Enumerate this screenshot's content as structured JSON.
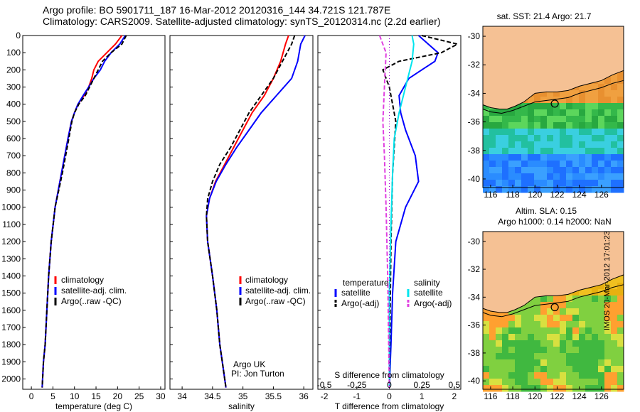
{
  "title_line1": "Argo profile: BO 5901711_187 16-Mar-2012 20120316_144 34.721S 121.787E",
  "title_line2": "Climatology: CARS2009. Satellite-adjusted climatology: synTS_20120314.nc (2.2d earlier)",
  "colors": {
    "climatology": "#ff0000",
    "satellite": "#0000ff",
    "argo": "#000000",
    "sat_diff_S": "#00e5ee",
    "argo_diff_S": "#e040e0",
    "land": "#f5c194",
    "grid": "#000000"
  },
  "chart_data": [
    {
      "type": "line",
      "xlabel": "temperature (deg C)",
      "ylabel": "",
      "xlim": [
        -2,
        31
      ],
      "ylim": [
        2060,
        0
      ],
      "xticks": [
        0,
        5,
        10,
        15,
        20,
        25,
        30
      ],
      "yticks": [
        0,
        100,
        200,
        300,
        400,
        500,
        600,
        700,
        800,
        900,
        1000,
        1100,
        1200,
        1300,
        1400,
        1500,
        1600,
        1700,
        1800,
        1900,
        2000
      ],
      "legend": [
        "climatology",
        "satellite-adj. clim.",
        "Argo(..raw -QC)"
      ],
      "series": [
        {
          "name": "climatology",
          "color": "#ff0000",
          "dash": "",
          "x": [
            21.0,
            19.5,
            17.5,
            15.5,
            14.5,
            14.0,
            13.3,
            12.2,
            10.8,
            10.0,
            9.3,
            8.5,
            7.0,
            5.5,
            4.6,
            4.0,
            3.6,
            3.2,
            2.8,
            2.6,
            2.5
          ],
          "y": [
            0,
            50,
            100,
            150,
            200,
            250,
            300,
            350,
            400,
            450,
            500,
            600,
            800,
            1000,
            1200,
            1400,
            1600,
            1800,
            1900,
            2000,
            2050
          ]
        },
        {
          "name": "satellite-adj. clim.",
          "color": "#0000ff",
          "dash": "",
          "x": [
            21.8,
            20.5,
            18.5,
            17.0,
            16.0,
            14.5,
            13.3,
            12.0,
            10.8,
            10.0,
            9.3,
            8.5,
            7.0,
            5.5,
            4.6,
            4.0,
            3.6,
            3.2,
            2.8,
            2.6,
            2.5
          ],
          "y": [
            0,
            50,
            100,
            150,
            200,
            250,
            300,
            350,
            400,
            450,
            500,
            600,
            800,
            1000,
            1200,
            1400,
            1600,
            1800,
            1900,
            2000,
            2050
          ]
        },
        {
          "name": "Argo(..raw -QC)",
          "color": "#000000",
          "dash": "6,3",
          "x": [
            22.0,
            21.0,
            18.5,
            16.5,
            15.5,
            14.5,
            13.5,
            12.5,
            11.0,
            10.0,
            9.4,
            8.7,
            7.2,
            5.5,
            4.6,
            4.0,
            3.6,
            3.2,
            2.8,
            2.6,
            2.5
          ],
          "y": [
            0,
            50,
            100,
            150,
            200,
            250,
            300,
            350,
            400,
            450,
            500,
            600,
            800,
            1000,
            1200,
            1400,
            1600,
            1800,
            1900,
            2000,
            2050
          ]
        }
      ]
    },
    {
      "type": "line",
      "xlabel": "salinity",
      "ylabel": "",
      "xlim": [
        33.8,
        36.15
      ],
      "ylim": [
        2060,
        0
      ],
      "xticks": [
        34,
        34.5,
        35,
        35.5,
        36
      ],
      "legend": [
        "climatology",
        "satellite-adj. clim.",
        "Argo(..raw -QC)"
      ],
      "annotation": [
        "Argo UK",
        "PI: Jon Turton"
      ],
      "series": [
        {
          "name": "climatology",
          "color": "#ff0000",
          "dash": "",
          "x": [
            35.75,
            35.7,
            35.62,
            35.5,
            35.35,
            35.15,
            35.0,
            34.85,
            34.7,
            34.55,
            34.45,
            34.4,
            34.42,
            34.5,
            34.57,
            34.62,
            34.66,
            34.7,
            34.72
          ],
          "y": [
            0,
            50,
            150,
            250,
            350,
            450,
            550,
            650,
            750,
            850,
            950,
            1050,
            1200,
            1400,
            1600,
            1800,
            1900,
            2000,
            2050
          ]
        },
        {
          "name": "satellite-adj. clim.",
          "color": "#0000ff",
          "dash": "",
          "x": [
            36.02,
            35.95,
            35.9,
            35.8,
            35.55,
            35.3,
            35.1,
            34.9,
            34.72,
            34.56,
            34.45,
            34.4,
            34.42,
            34.5,
            34.57,
            34.62,
            34.66,
            34.7,
            34.72
          ],
          "y": [
            0,
            50,
            150,
            250,
            350,
            450,
            550,
            650,
            750,
            850,
            950,
            1050,
            1200,
            1400,
            1600,
            1800,
            1900,
            2000,
            2050
          ]
        },
        {
          "name": "Argo(..raw -QC)",
          "color": "#000000",
          "dash": "6,3",
          "x": [
            35.85,
            35.8,
            35.65,
            35.5,
            35.3,
            35.1,
            34.95,
            34.8,
            34.62,
            34.5,
            34.42,
            34.4,
            34.42,
            34.5,
            34.57,
            34.62,
            34.66,
            34.7,
            34.72
          ],
          "y": [
            0,
            50,
            150,
            250,
            350,
            450,
            550,
            650,
            750,
            850,
            950,
            1050,
            1200,
            1400,
            1600,
            1800,
            1900,
            2000,
            2050
          ]
        }
      ]
    },
    {
      "type": "line",
      "xlabel": "T difference from climatology",
      "xlabel_top": "S difference from climatology",
      "ylabel": "",
      "xlim": [
        -2.2,
        2.2
      ],
      "ylim": [
        2060,
        0
      ],
      "xticks": [
        -2,
        -1,
        0,
        1,
        2
      ],
      "xticks_S_labels": [
        "-0.5",
        "-0.25",
        "0",
        "0.25",
        "0.5"
      ],
      "xticks_S_pos": [
        -2,
        -1,
        0,
        1,
        2
      ],
      "legend_T": [
        "temperature",
        "satellite",
        "Argo(-adj)"
      ],
      "legend_S": [
        "salinity",
        "satellite",
        "Argo(-adj)"
      ],
      "series": [
        {
          "name": "T satellite",
          "color": "#0000ff",
          "dash": "",
          "x": [
            0.9,
            1.2,
            1.5,
            1.4,
            1.0,
            0.6,
            0.3,
            0.35,
            0.5,
            0.8,
            0.9,
            0.5,
            0.2,
            0.1,
            0.05,
            0.0
          ],
          "y": [
            0,
            50,
            100,
            150,
            200,
            250,
            350,
            450,
            550,
            700,
            850,
            1000,
            1200,
            1500,
            1800,
            2050
          ]
        },
        {
          "name": "T Argo(-adj)",
          "color": "#000000",
          "dash": "6,3",
          "x": [
            1.0,
            2.1,
            1.6,
            0.3,
            -0.2,
            0.0,
            0.2,
            0.1,
            0.05,
            0.0
          ],
          "y": [
            0,
            50,
            100,
            150,
            200,
            300,
            500,
            800,
            1200,
            2050
          ]
        },
        {
          "name": "S satellite",
          "color": "#00e5ee",
          "dash": "",
          "x": [
            0.7,
            0.75,
            0.7,
            0.5,
            0.3,
            0.15,
            0.1,
            0.05,
            0.0,
            0.0
          ],
          "y": [
            0,
            50,
            150,
            300,
            450,
            600,
            800,
            1100,
            1500,
            2050
          ]
        },
        {
          "name": "S Argo(-adj)",
          "color": "#e040e0",
          "dash": "6,3",
          "x": [
            -0.3,
            -0.1,
            -0.15,
            -0.2,
            -0.15,
            -0.1,
            -0.05,
            0.0
          ],
          "y": [
            0,
            100,
            300,
            500,
            700,
            1000,
            1400,
            2050
          ]
        }
      ]
    },
    {
      "type": "heatmap",
      "title": "sat. SST: 21.4  Argo: 21.7",
      "xticks": [
        116,
        118,
        120,
        122,
        124,
        126
      ],
      "yticks": [
        -30,
        -32,
        -34,
        -36,
        -38,
        -40
      ],
      "xlim": [
        115.3,
        128
      ],
      "ylim": [
        -40.6,
        -29.3
      ],
      "argo_position": [
        121.787,
        -34.721
      ]
    },
    {
      "type": "heatmap",
      "title": "Altim. SLA: 0.15",
      "subtitle": "Argo h1000: 0.14 h2000: NaN",
      "xticks": [
        116,
        118,
        120,
        122,
        124,
        126
      ],
      "yticks": [
        -30,
        -32,
        -34,
        -36,
        -38,
        -40
      ],
      "xlim": [
        115.3,
        128
      ],
      "ylim": [
        -40.6,
        -29.3
      ],
      "argo_position": [
        121.787,
        -34.721
      ]
    }
  ],
  "side_stamp": "IMOS 20-Mar-2012 17:01:23"
}
